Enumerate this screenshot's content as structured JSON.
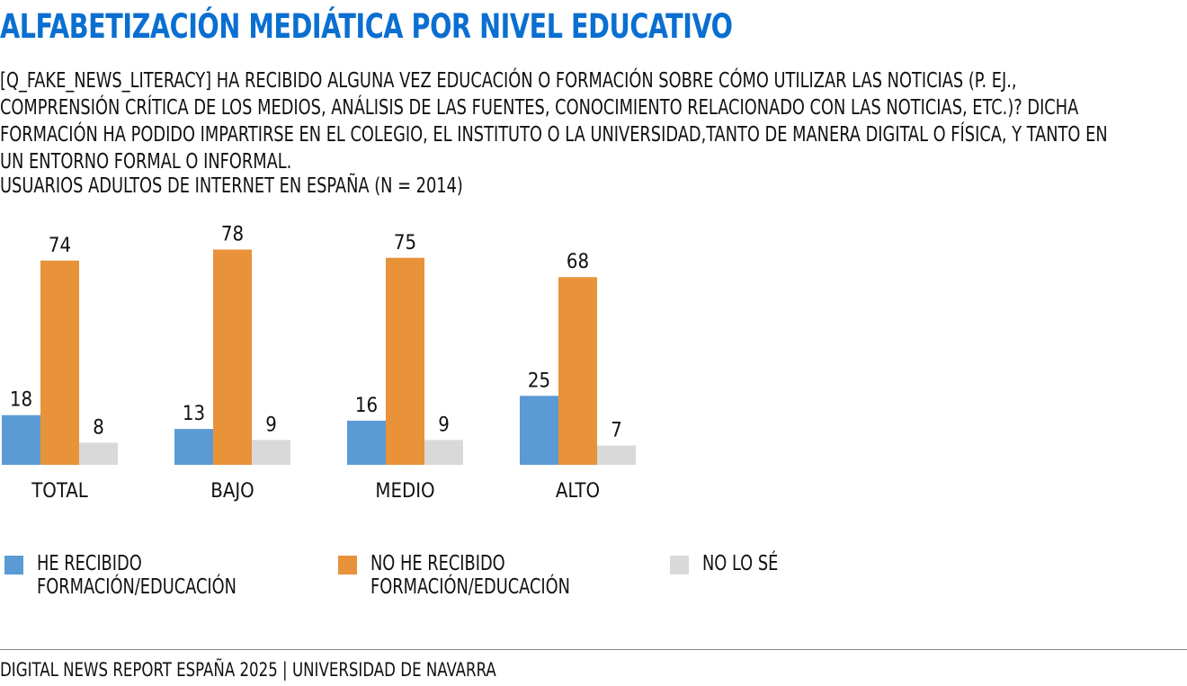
{
  "header": {
    "title": "ALFABETIZACIÓN MEDIÁTICA POR NIVEL EDUCATIVO",
    "question_lines": [
      "[Q_FAKE_NEWS_LITERACY] HA RECIBIDO ALGUNA VEZ EDUCACIÓN O FORMACIÓN SOBRE CÓMO UTILIZAR LAS NOTICIAS (P. EJ.,",
      "COMPRENSIÓN CRÍTICA DE LOS MEDIOS, ANÁLISIS DE LAS FUENTES, CONOCIMIENTO RELACIONADO CON LAS NOTICIAS, ETC.)? DICHA",
      "FORMACIÓN HA PODIDO IMPARTIRSE EN EL COLEGIO, EL INSTITUTO O LA UNIVERSIDAD,TANTO DE MANERA DIGITAL O FÍSICA, Y TANTO EN",
      "UN ENTORNO FORMAL O INFORMAL."
    ],
    "sample": "USUARIOS ADULTOS DE INTERNET EN ESPAÑA (N = 2014)"
  },
  "chart_data": {
    "type": "bar",
    "title": "ALFABETIZACIÓN MEDIÁTICA POR NIVEL EDUCATIVO",
    "categories": [
      "TOTAL",
      "BAJO",
      "MEDIO",
      "ALTO"
    ],
    "series": [
      {
        "name": "HE RECIBIDO FORMACIÓN/EDUCACIÓN",
        "values": [
          18,
          13,
          16,
          25
        ],
        "color": "#5b9bd5"
      },
      {
        "name": "NO HE RECIBIDO FORMACIÓN/EDUCACIÓN",
        "values": [
          74,
          78,
          75,
          68
        ],
        "color": "#e8923a"
      },
      {
        "name": "NO LO SÉ",
        "values": [
          8,
          9,
          9,
          7
        ],
        "color": "#d9d9d9"
      }
    ],
    "ylim": [
      0,
      80
    ],
    "grid": false,
    "legend_position": "bottom"
  },
  "footer": {
    "source": "DIGITAL NEWS REPORT ESPAÑA 2025 | UNIVERSIDAD DE NAVARRA"
  }
}
